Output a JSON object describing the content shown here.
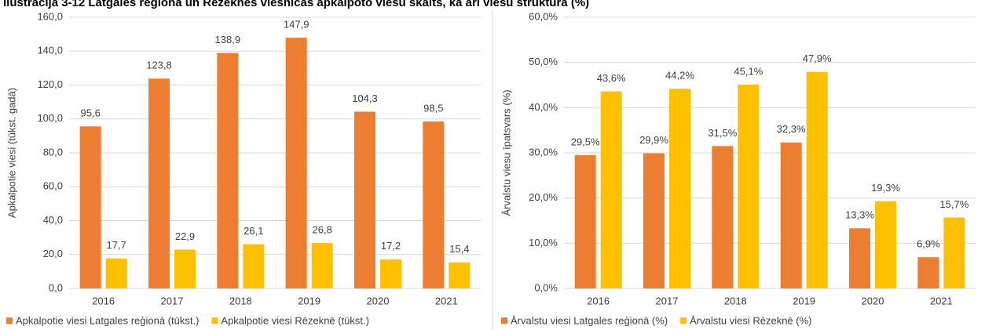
{
  "title": "Ilustrācija 3-12 Latgales reģionā un Rēzeknes viesnīcās apkalpoto viesu skaits, kā arī viesu struktūra (%)",
  "chart_data": [
    {
      "type": "bar",
      "y_label": "Apkalpotie viesi (tūkst. gadā)",
      "categories": [
        "2016",
        "2017",
        "2018",
        "2019",
        "2020",
        "2021"
      ],
      "ylim": [
        0,
        160
      ],
      "yticks": [
        {
          "value": 0,
          "label": "0,0"
        },
        {
          "value": 20,
          "label": "20,0"
        },
        {
          "value": 40,
          "label": "40,0"
        },
        {
          "value": 60,
          "label": "60,0"
        },
        {
          "value": 80,
          "label": "80,0"
        },
        {
          "value": 100,
          "label": "100,0"
        },
        {
          "value": 120,
          "label": "120,0"
        },
        {
          "value": 140,
          "label": "140,0"
        },
        {
          "value": 160,
          "label": "160,0"
        }
      ],
      "grid": true,
      "legend": "bottom",
      "series": [
        {
          "name": "Apkalpotie viesi Latgales reģionā (tūkst.)",
          "color": "#ed7d31",
          "values": [
            95.6,
            123.8,
            138.9,
            147.9,
            104.3,
            98.5
          ],
          "value_labels": [
            "95,6",
            "123,8",
            "138,9",
            "147,9",
            "104,3",
            "98,5"
          ]
        },
        {
          "name": "Apkalpotie viesi Rēzeknē (tūkst.)",
          "color": "#ffc000",
          "values": [
            17.7,
            22.9,
            26.1,
            26.8,
            17.2,
            15.4
          ],
          "value_labels": [
            "17,7",
            "22,9",
            "26,1",
            "26,8",
            "17,2",
            "15,4"
          ]
        }
      ]
    },
    {
      "type": "bar",
      "y_label": "Ārvalstu viesu īpatsvars (%)",
      "categories": [
        "2016",
        "2017",
        "2018",
        "2019",
        "2020",
        "2021"
      ],
      "ylim": [
        0,
        60
      ],
      "yticks": [
        {
          "value": 0,
          "label": "0,0%"
        },
        {
          "value": 10,
          "label": "10,0%"
        },
        {
          "value": 20,
          "label": "20,0%"
        },
        {
          "value": 30,
          "label": "30,0%"
        },
        {
          "value": 40,
          "label": "40,0%"
        },
        {
          "value": 50,
          "label": "50,0%"
        },
        {
          "value": 60,
          "label": "60,0%"
        }
      ],
      "grid": true,
      "legend": "bottom",
      "series": [
        {
          "name": "Ārvalstu viesi Latgales reģionā (%)",
          "color": "#ed7d31",
          "values": [
            29.5,
            29.9,
            31.5,
            32.3,
            13.3,
            6.9
          ],
          "value_labels": [
            "29,5%",
            "29,9%",
            "31,5%",
            "32,3%",
            "13,3%",
            "6,9%"
          ]
        },
        {
          "name": "Ārvalstu viesi Rēzeknē (%)",
          "color": "#ffc000",
          "values": [
            43.6,
            44.2,
            45.1,
            47.9,
            19.3,
            15.7
          ],
          "value_labels": [
            "43,6%",
            "44,2%",
            "45,1%",
            "47,9%",
            "19,3%",
            "15,7%"
          ]
        }
      ]
    }
  ]
}
